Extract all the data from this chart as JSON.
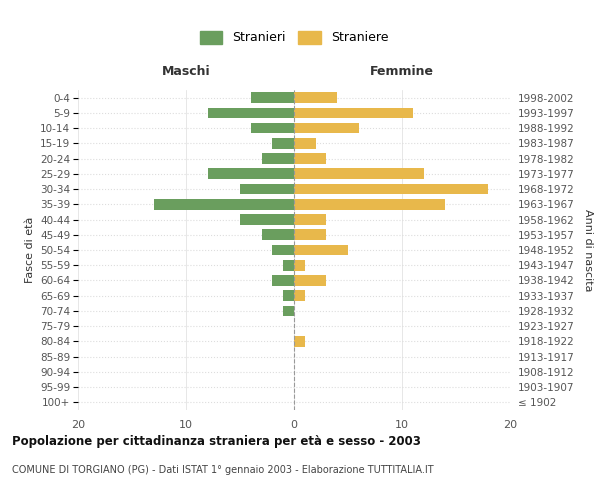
{
  "age_groups": [
    "100+",
    "95-99",
    "90-94",
    "85-89",
    "80-84",
    "75-79",
    "70-74",
    "65-69",
    "60-64",
    "55-59",
    "50-54",
    "45-49",
    "40-44",
    "35-39",
    "30-34",
    "25-29",
    "20-24",
    "15-19",
    "10-14",
    "5-9",
    "0-4"
  ],
  "birth_years": [
    "≤ 1902",
    "1903-1907",
    "1908-1912",
    "1913-1917",
    "1918-1922",
    "1923-1927",
    "1928-1932",
    "1933-1937",
    "1938-1942",
    "1943-1947",
    "1948-1952",
    "1953-1957",
    "1958-1962",
    "1963-1967",
    "1968-1972",
    "1973-1977",
    "1978-1982",
    "1983-1987",
    "1988-1992",
    "1993-1997",
    "1998-2002"
  ],
  "maschi": [
    0,
    0,
    0,
    0,
    0,
    0,
    1,
    1,
    2,
    1,
    2,
    3,
    5,
    13,
    5,
    8,
    3,
    2,
    4,
    8,
    4
  ],
  "femmine": [
    0,
    0,
    0,
    0,
    1,
    0,
    0,
    1,
    3,
    1,
    5,
    3,
    3,
    14,
    18,
    12,
    3,
    2,
    6,
    11,
    4
  ],
  "color_maschi": "#6a9e5e",
  "color_femmine": "#e8b84b",
  "title": "Popolazione per cittadinanza straniera per età e sesso - 2003",
  "subtitle": "COMUNE DI TORGIANO (PG) - Dati ISTAT 1° gennaio 2003 - Elaborazione TUTTITALIA.IT",
  "xlabel_left": "Maschi",
  "xlabel_right": "Femmine",
  "ylabel_left": "Fasce di età",
  "ylabel_right": "Anni di nascita",
  "legend_maschi": "Stranieri",
  "legend_femmine": "Straniere",
  "xlim": 20,
  "background_color": "#ffffff",
  "grid_color": "#dddddd"
}
